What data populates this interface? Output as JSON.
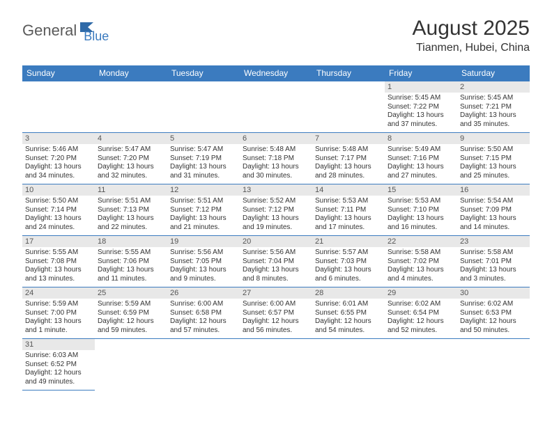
{
  "logo": {
    "part1": "General",
    "part2": "Blue"
  },
  "title": "August 2025",
  "location": "Tianmen, Hubei, China",
  "colors": {
    "header_bg": "#3b7bbf",
    "header_text": "#ffffff",
    "daynum_bg": "#e8e8e8",
    "border": "#3b7bbf",
    "text": "#333333"
  },
  "daynames": [
    "Sunday",
    "Monday",
    "Tuesday",
    "Wednesday",
    "Thursday",
    "Friday",
    "Saturday"
  ],
  "weeks": [
    [
      null,
      null,
      null,
      null,
      null,
      {
        "n": "1",
        "sr": "Sunrise: 5:45 AM",
        "ss": "Sunset: 7:22 PM",
        "d1": "Daylight: 13 hours",
        "d2": "and 37 minutes."
      },
      {
        "n": "2",
        "sr": "Sunrise: 5:45 AM",
        "ss": "Sunset: 7:21 PM",
        "d1": "Daylight: 13 hours",
        "d2": "and 35 minutes."
      }
    ],
    [
      {
        "n": "3",
        "sr": "Sunrise: 5:46 AM",
        "ss": "Sunset: 7:20 PM",
        "d1": "Daylight: 13 hours",
        "d2": "and 34 minutes."
      },
      {
        "n": "4",
        "sr": "Sunrise: 5:47 AM",
        "ss": "Sunset: 7:20 PM",
        "d1": "Daylight: 13 hours",
        "d2": "and 32 minutes."
      },
      {
        "n": "5",
        "sr": "Sunrise: 5:47 AM",
        "ss": "Sunset: 7:19 PM",
        "d1": "Daylight: 13 hours",
        "d2": "and 31 minutes."
      },
      {
        "n": "6",
        "sr": "Sunrise: 5:48 AM",
        "ss": "Sunset: 7:18 PM",
        "d1": "Daylight: 13 hours",
        "d2": "and 30 minutes."
      },
      {
        "n": "7",
        "sr": "Sunrise: 5:48 AM",
        "ss": "Sunset: 7:17 PM",
        "d1": "Daylight: 13 hours",
        "d2": "and 28 minutes."
      },
      {
        "n": "8",
        "sr": "Sunrise: 5:49 AM",
        "ss": "Sunset: 7:16 PM",
        "d1": "Daylight: 13 hours",
        "d2": "and 27 minutes."
      },
      {
        "n": "9",
        "sr": "Sunrise: 5:50 AM",
        "ss": "Sunset: 7:15 PM",
        "d1": "Daylight: 13 hours",
        "d2": "and 25 minutes."
      }
    ],
    [
      {
        "n": "10",
        "sr": "Sunrise: 5:50 AM",
        "ss": "Sunset: 7:14 PM",
        "d1": "Daylight: 13 hours",
        "d2": "and 24 minutes."
      },
      {
        "n": "11",
        "sr": "Sunrise: 5:51 AM",
        "ss": "Sunset: 7:13 PM",
        "d1": "Daylight: 13 hours",
        "d2": "and 22 minutes."
      },
      {
        "n": "12",
        "sr": "Sunrise: 5:51 AM",
        "ss": "Sunset: 7:12 PM",
        "d1": "Daylight: 13 hours",
        "d2": "and 21 minutes."
      },
      {
        "n": "13",
        "sr": "Sunrise: 5:52 AM",
        "ss": "Sunset: 7:12 PM",
        "d1": "Daylight: 13 hours",
        "d2": "and 19 minutes."
      },
      {
        "n": "14",
        "sr": "Sunrise: 5:53 AM",
        "ss": "Sunset: 7:11 PM",
        "d1": "Daylight: 13 hours",
        "d2": "and 17 minutes."
      },
      {
        "n": "15",
        "sr": "Sunrise: 5:53 AM",
        "ss": "Sunset: 7:10 PM",
        "d1": "Daylight: 13 hours",
        "d2": "and 16 minutes."
      },
      {
        "n": "16",
        "sr": "Sunrise: 5:54 AM",
        "ss": "Sunset: 7:09 PM",
        "d1": "Daylight: 13 hours",
        "d2": "and 14 minutes."
      }
    ],
    [
      {
        "n": "17",
        "sr": "Sunrise: 5:55 AM",
        "ss": "Sunset: 7:08 PM",
        "d1": "Daylight: 13 hours",
        "d2": "and 13 minutes."
      },
      {
        "n": "18",
        "sr": "Sunrise: 5:55 AM",
        "ss": "Sunset: 7:06 PM",
        "d1": "Daylight: 13 hours",
        "d2": "and 11 minutes."
      },
      {
        "n": "19",
        "sr": "Sunrise: 5:56 AM",
        "ss": "Sunset: 7:05 PM",
        "d1": "Daylight: 13 hours",
        "d2": "and 9 minutes."
      },
      {
        "n": "20",
        "sr": "Sunrise: 5:56 AM",
        "ss": "Sunset: 7:04 PM",
        "d1": "Daylight: 13 hours",
        "d2": "and 8 minutes."
      },
      {
        "n": "21",
        "sr": "Sunrise: 5:57 AM",
        "ss": "Sunset: 7:03 PM",
        "d1": "Daylight: 13 hours",
        "d2": "and 6 minutes."
      },
      {
        "n": "22",
        "sr": "Sunrise: 5:58 AM",
        "ss": "Sunset: 7:02 PM",
        "d1": "Daylight: 13 hours",
        "d2": "and 4 minutes."
      },
      {
        "n": "23",
        "sr": "Sunrise: 5:58 AM",
        "ss": "Sunset: 7:01 PM",
        "d1": "Daylight: 13 hours",
        "d2": "and 3 minutes."
      }
    ],
    [
      {
        "n": "24",
        "sr": "Sunrise: 5:59 AM",
        "ss": "Sunset: 7:00 PM",
        "d1": "Daylight: 13 hours",
        "d2": "and 1 minute."
      },
      {
        "n": "25",
        "sr": "Sunrise: 5:59 AM",
        "ss": "Sunset: 6:59 PM",
        "d1": "Daylight: 12 hours",
        "d2": "and 59 minutes."
      },
      {
        "n": "26",
        "sr": "Sunrise: 6:00 AM",
        "ss": "Sunset: 6:58 PM",
        "d1": "Daylight: 12 hours",
        "d2": "and 57 minutes."
      },
      {
        "n": "27",
        "sr": "Sunrise: 6:00 AM",
        "ss": "Sunset: 6:57 PM",
        "d1": "Daylight: 12 hours",
        "d2": "and 56 minutes."
      },
      {
        "n": "28",
        "sr": "Sunrise: 6:01 AM",
        "ss": "Sunset: 6:55 PM",
        "d1": "Daylight: 12 hours",
        "d2": "and 54 minutes."
      },
      {
        "n": "29",
        "sr": "Sunrise: 6:02 AM",
        "ss": "Sunset: 6:54 PM",
        "d1": "Daylight: 12 hours",
        "d2": "and 52 minutes."
      },
      {
        "n": "30",
        "sr": "Sunrise: 6:02 AM",
        "ss": "Sunset: 6:53 PM",
        "d1": "Daylight: 12 hours",
        "d2": "and 50 minutes."
      }
    ],
    [
      {
        "n": "31",
        "sr": "Sunrise: 6:03 AM",
        "ss": "Sunset: 6:52 PM",
        "d1": "Daylight: 12 hours",
        "d2": "and 49 minutes."
      },
      null,
      null,
      null,
      null,
      null,
      null
    ]
  ]
}
